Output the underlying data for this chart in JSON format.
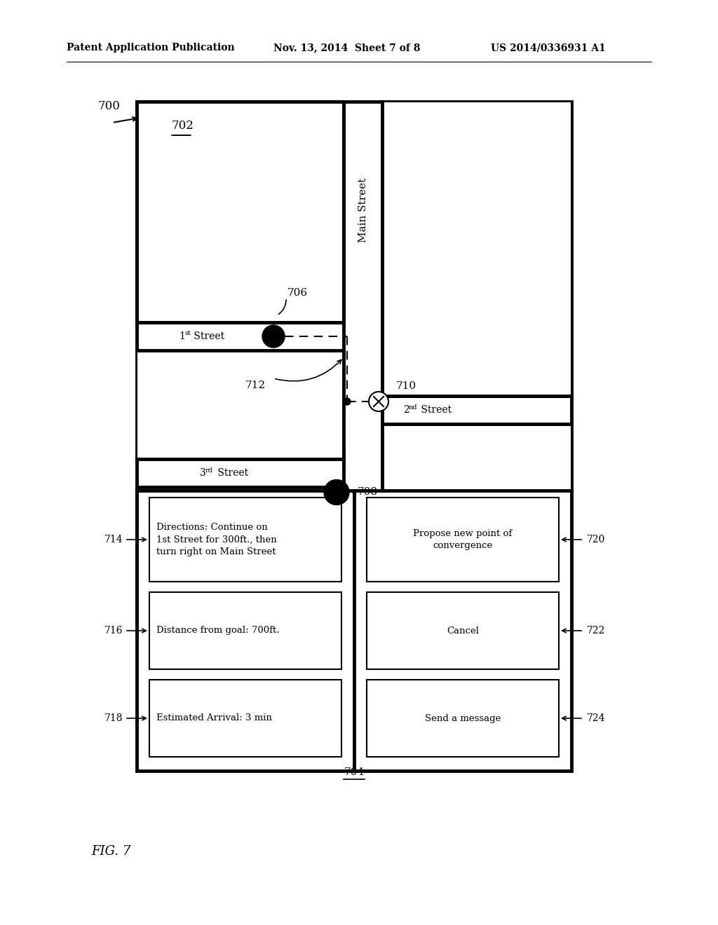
{
  "bg_color": "#ffffff",
  "header_left": "Patent Application Publication",
  "header_mid": "Nov. 13, 2014  Sheet 7 of 8",
  "header_right": "US 2014/0336931 A1",
  "fig_label": "FIG. 7",
  "fig_number": "700",
  "device_label": "702",
  "lower_panel_label": "704",
  "dot1_label": "706",
  "dot2_label": "708",
  "cross_label": "710",
  "dashed_label": "712",
  "dir_label": "714",
  "dist_label": "716",
  "eta_label": "718",
  "propose_label": "720",
  "cancel_label": "722",
  "msg_label": "724",
  "directions_text": "Directions: Continue on\n1st Street for 300ft., then\nturn right on Main Street",
  "distance_text": "Distance from goal: 700ft.",
  "eta_text": "Estimated Arrival: 3 min",
  "propose_text": "Propose new point of\nconvergence",
  "cancel_text": "Cancel",
  "send_text": "Send a message"
}
